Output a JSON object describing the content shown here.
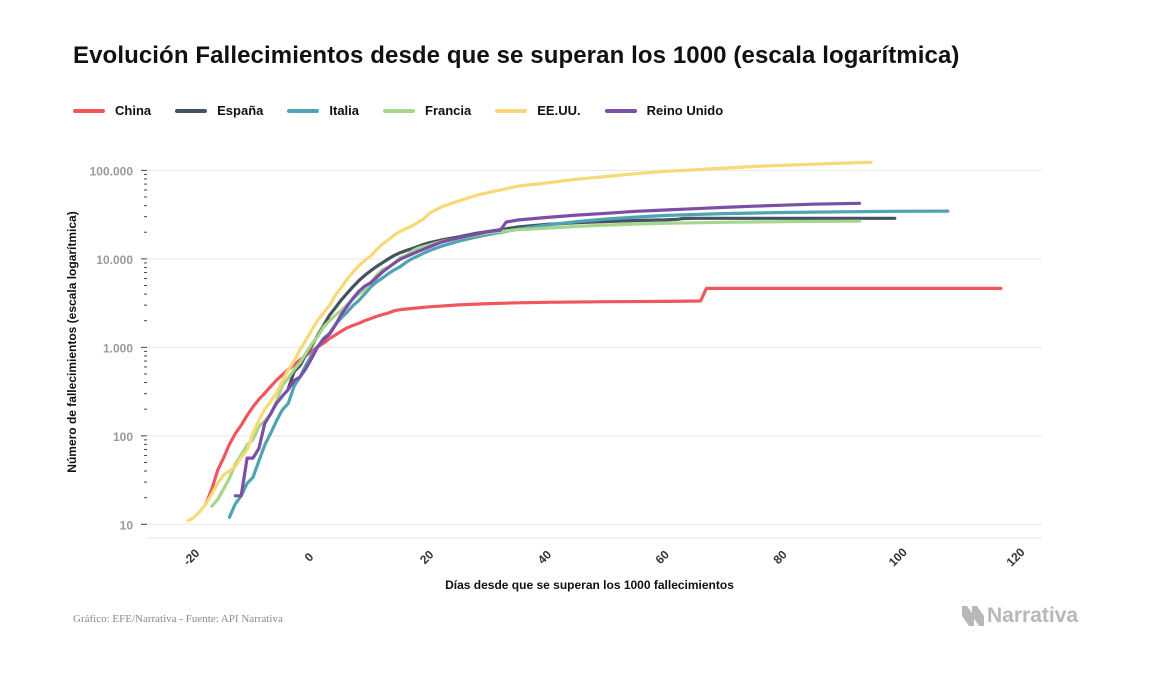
{
  "header": {
    "title": "Evolución Fallecimientos desde que se superan los 1000 (escala logarítmica)"
  },
  "footer": {
    "source": "Gráfico: EFE/Narrativa - Fuente: API Narrativa",
    "logo_text": "Narrativa"
  },
  "chart_data": {
    "type": "line",
    "title": "Evolución Fallecimientos desde que se superan los 1000 (escala logarítmica)",
    "xlabel": "Días desde que se superan los 1000 fallecimientos",
    "ylabel": "Número de fallecimientos (escala logarítmica)",
    "y_scale": "log",
    "xlim": [
      -28,
      124
    ],
    "ylim": [
      7,
      170000
    ],
    "x_ticks": [
      -20,
      0,
      20,
      40,
      60,
      80,
      100,
      120
    ],
    "x_tick_labels": [
      "-20",
      "0",
      "20",
      "40",
      "60",
      "80",
      "100",
      "120"
    ],
    "y_ticks": [
      10,
      100,
      1000,
      10000,
      100000
    ],
    "y_tick_labels": [
      "10",
      "100",
      "1.000",
      "10.000",
      "100.000"
    ],
    "grid": "horizontal",
    "legend_position": "top-left",
    "series": [
      {
        "name": "China",
        "color": "#f0575d",
        "points": [
          [
            -18,
            17
          ],
          [
            -17,
            25
          ],
          [
            -16,
            41
          ],
          [
            -15,
            56
          ],
          [
            -14,
            80
          ],
          [
            -13,
            106
          ],
          [
            -12,
            132
          ],
          [
            -11,
            170
          ],
          [
            -10,
            213
          ],
          [
            -9,
            259
          ],
          [
            -8,
            304
          ],
          [
            -7,
            361
          ],
          [
            -6,
            425
          ],
          [
            -5,
            490
          ],
          [
            -4,
            562
          ],
          [
            -3,
            636
          ],
          [
            -2,
            722
          ],
          [
            -1,
            811
          ],
          [
            0,
            908
          ],
          [
            1,
            1016
          ],
          [
            2,
            1113
          ],
          [
            3,
            1259
          ],
          [
            4,
            1380
          ],
          [
            5,
            1523
          ],
          [
            6,
            1665
          ],
          [
            7,
            1770
          ],
          [
            8,
            1868
          ],
          [
            9,
            2004
          ],
          [
            10,
            2118
          ],
          [
            11,
            2236
          ],
          [
            12,
            2345
          ],
          [
            13,
            2442
          ],
          [
            14,
            2592
          ],
          [
            15,
            2663
          ],
          [
            16,
            2715
          ],
          [
            18,
            2788
          ],
          [
            20,
            2870
          ],
          [
            25,
            3015
          ],
          [
            30,
            3120
          ],
          [
            35,
            3190
          ],
          [
            40,
            3230
          ],
          [
            50,
            3280
          ],
          [
            60,
            3305
          ],
          [
            66,
            3340
          ],
          [
            67,
            4632
          ],
          [
            70,
            4634
          ],
          [
            90,
            4634
          ],
          [
            117,
            4634
          ]
        ]
      },
      {
        "name": "España",
        "color": "#44535f",
        "points": [
          [
            -4,
            342
          ],
          [
            -3,
            533
          ],
          [
            -2,
            623
          ],
          [
            -1,
            830
          ],
          [
            0,
            1043
          ],
          [
            1,
            1375
          ],
          [
            2,
            1772
          ],
          [
            3,
            2311
          ],
          [
            4,
            2808
          ],
          [
            5,
            3434
          ],
          [
            6,
            4089
          ],
          [
            7,
            4858
          ],
          [
            8,
            5690
          ],
          [
            9,
            6528
          ],
          [
            10,
            7340
          ],
          [
            11,
            8189
          ],
          [
            12,
            9053
          ],
          [
            13,
            10003
          ],
          [
            14,
            10935
          ],
          [
            15,
            11744
          ],
          [
            16,
            12418
          ],
          [
            17,
            13055
          ],
          [
            18,
            13798
          ],
          [
            19,
            14555
          ],
          [
            20,
            15238
          ],
          [
            22,
            16353
          ],
          [
            25,
            17756
          ],
          [
            28,
            19478
          ],
          [
            30,
            20453
          ],
          [
            35,
            22902
          ],
          [
            40,
            24543
          ],
          [
            45,
            25613
          ],
          [
            50,
            26478
          ],
          [
            55,
            27117
          ],
          [
            60,
            27563
          ],
          [
            62,
            27940
          ],
          [
            63,
            28628
          ],
          [
            65,
            28752
          ],
          [
            70,
            28752
          ],
          [
            80,
            28752
          ],
          [
            90,
            28752
          ],
          [
            99,
            28752
          ]
        ]
      },
      {
        "name": "Italia",
        "color": "#4fa3b3",
        "points": [
          [
            -14,
            12
          ],
          [
            -13,
            17
          ],
          [
            -12,
            21
          ],
          [
            -11,
            29
          ],
          [
            -10,
            34
          ],
          [
            -9,
            52
          ],
          [
            -8,
            79
          ],
          [
            -7,
            107
          ],
          [
            -6,
            148
          ],
          [
            -5,
            197
          ],
          [
            -4,
            233
          ],
          [
            -3,
            366
          ],
          [
            -2,
            463
          ],
          [
            -1,
            631
          ],
          [
            0,
            827
          ],
          [
            1,
            1016
          ],
          [
            2,
            1266
          ],
          [
            3,
            1441
          ],
          [
            4,
            1809
          ],
          [
            5,
            2158
          ],
          [
            6,
            2503
          ],
          [
            7,
            2978
          ],
          [
            8,
            3405
          ],
          [
            9,
            4032
          ],
          [
            10,
            4825
          ],
          [
            11,
            5476
          ],
          [
            12,
            6077
          ],
          [
            13,
            6820
          ],
          [
            14,
            7503
          ],
          [
            15,
            8165
          ],
          [
            16,
            9134
          ],
          [
            17,
            10023
          ],
          [
            18,
            10779
          ],
          [
            19,
            11591
          ],
          [
            20,
            12428
          ],
          [
            22,
            13915
          ],
          [
            25,
            15887
          ],
          [
            28,
            17669
          ],
          [
            30,
            18849
          ],
          [
            35,
            21645
          ],
          [
            40,
            24114
          ],
          [
            45,
            26384
          ],
          [
            50,
            28236
          ],
          [
            55,
            29684
          ],
          [
            60,
            30911
          ],
          [
            65,
            31763
          ],
          [
            70,
            32486
          ],
          [
            80,
            33415
          ],
          [
            90,
            34043
          ],
          [
            100,
            34514
          ],
          [
            108,
            34708
          ]
        ]
      },
      {
        "name": "Francia",
        "color": "#a6d58c",
        "points": [
          [
            -17,
            16
          ],
          [
            -16,
            19
          ],
          [
            -15,
            25
          ],
          [
            -14,
            33
          ],
          [
            -13,
            48
          ],
          [
            -12,
            61
          ],
          [
            -11,
            79
          ],
          [
            -10,
            91
          ],
          [
            -9,
            127
          ],
          [
            -8,
            148
          ],
          [
            -7,
            175
          ],
          [
            -6,
            244
          ],
          [
            -5,
            372
          ],
          [
            -4,
            450
          ],
          [
            -3,
            562
          ],
          [
            -2,
            674
          ],
          [
            -1,
            860
          ],
          [
            0,
            1100
          ],
          [
            1,
            1331
          ],
          [
            2,
            1696
          ],
          [
            3,
            1995
          ],
          [
            4,
            2314
          ],
          [
            5,
            2606
          ],
          [
            6,
            3024
          ],
          [
            7,
            3523
          ],
          [
            8,
            4032
          ],
          [
            9,
            4503
          ],
          [
            10,
            5387
          ],
          [
            11,
            6507
          ],
          [
            12,
            7560
          ],
          [
            13,
            8078
          ],
          [
            14,
            8911
          ],
          [
            15,
            10328
          ],
          [
            16,
            10869
          ],
          [
            17,
            12210
          ],
          [
            18,
            13197
          ],
          [
            20,
            14393
          ],
          [
            22,
            15729
          ],
          [
            25,
            17167
          ],
          [
            28,
            18681
          ],
          [
            30,
            19718
          ],
          [
            35,
            21342
          ],
          [
            40,
            22245
          ],
          [
            45,
            23293
          ],
          [
            50,
            24087
          ],
          [
            55,
            24760
          ],
          [
            60,
            25201
          ],
          [
            65,
            25531
          ],
          [
            70,
            25897
          ],
          [
            80,
            26310
          ],
          [
            93,
            26646
          ]
        ]
      },
      {
        "name": "EE.UU.",
        "color": "#f8d978",
        "points": [
          [
            -21,
            11
          ],
          [
            -20,
            12
          ],
          [
            -19,
            14
          ],
          [
            -18,
            17
          ],
          [
            -17,
            22
          ],
          [
            -16,
            29
          ],
          [
            -15,
            36
          ],
          [
            -14,
            40
          ],
          [
            -13,
            45
          ],
          [
            -12,
            57
          ],
          [
            -11,
            69
          ],
          [
            -10,
            108
          ],
          [
            -9,
            150
          ],
          [
            -8,
            200
          ],
          [
            -7,
            244
          ],
          [
            -6,
            307
          ],
          [
            -5,
            417
          ],
          [
            -4,
            557
          ],
          [
            -3,
            706
          ],
          [
            -2,
            942
          ],
          [
            -1,
            1209
          ],
          [
            0,
            1581
          ],
          [
            1,
            2026
          ],
          [
            2,
            2467
          ],
          [
            3,
            2978
          ],
          [
            4,
            3873
          ],
          [
            5,
            4757
          ],
          [
            6,
            5926
          ],
          [
            7,
            7087
          ],
          [
            8,
            8407
          ],
          [
            9,
            9619
          ],
          [
            10,
            10783
          ],
          [
            11,
            12722
          ],
          [
            12,
            14695
          ],
          [
            13,
            16478
          ],
          [
            14,
            18586
          ],
          [
            15,
            20463
          ],
          [
            16,
            22020
          ],
          [
            17,
            23529
          ],
          [
            18,
            25832
          ],
          [
            19,
            28325
          ],
          [
            20,
            32916
          ],
          [
            22,
            38664
          ],
          [
            25,
            45318
          ],
          [
            28,
            52459
          ],
          [
            30,
            56253
          ],
          [
            35,
            66369
          ],
          [
            40,
            72271
          ],
          [
            45,
            79528
          ],
          [
            50,
            85197
          ],
          [
            55,
            91664
          ],
          [
            60,
            97720
          ],
          [
            65,
            101573
          ],
          [
            70,
            106181
          ],
          [
            75,
            110514
          ],
          [
            80,
            114148
          ],
          [
            85,
            117527
          ],
          [
            90,
            120688
          ],
          [
            95,
            123476
          ]
        ]
      },
      {
        "name": "Reino Unido",
        "color": "#7b4fa6",
        "points": [
          [
            -13,
            21
          ],
          [
            -12,
            21
          ],
          [
            -11,
            56
          ],
          [
            -10,
            56
          ],
          [
            -9,
            72
          ],
          [
            -8,
            138
          ],
          [
            -7,
            178
          ],
          [
            -6,
            233
          ],
          [
            -5,
            281
          ],
          [
            -4,
            335
          ],
          [
            -3,
            422
          ],
          [
            -2,
            465
          ],
          [
            -1,
            578
          ],
          [
            0,
            759
          ],
          [
            1,
            1019
          ],
          [
            2,
            1228
          ],
          [
            3,
            1408
          ],
          [
            4,
            1789
          ],
          [
            5,
            2352
          ],
          [
            6,
            2921
          ],
          [
            7,
            3605
          ],
          [
            8,
            4313
          ],
          [
            9,
            4934
          ],
          [
            10,
            5373
          ],
          [
            11,
            6159
          ],
          [
            12,
            7097
          ],
          [
            13,
            7978
          ],
          [
            14,
            8958
          ],
          [
            15,
            9875
          ],
          [
            16,
            10612
          ],
          [
            17,
            11329
          ],
          [
            18,
            12107
          ],
          [
            19,
            12868
          ],
          [
            20,
            13729
          ],
          [
            22,
            15464
          ],
          [
            25,
            17337
          ],
          [
            28,
            19051
          ],
          [
            30,
            20319
          ],
          [
            32,
            21092
          ],
          [
            33,
            26097
          ],
          [
            35,
            27510
          ],
          [
            40,
            29427
          ],
          [
            45,
            31241
          ],
          [
            50,
            32692
          ],
          [
            55,
            34466
          ],
          [
            60,
            35704
          ],
          [
            65,
            36914
          ],
          [
            70,
            38161
          ],
          [
            75,
            39369
          ],
          [
            80,
            40465
          ],
          [
            85,
            41481
          ],
          [
            93,
            42461
          ]
        ]
      }
    ]
  }
}
